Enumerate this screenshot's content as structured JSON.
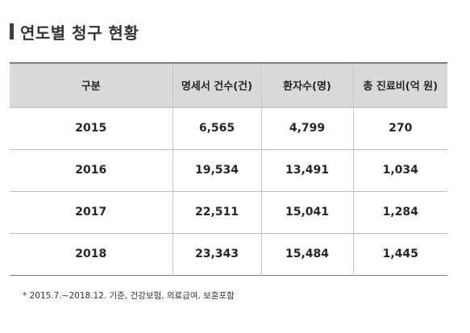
{
  "title": "연도별 청구 현황",
  "table": {
    "headers": [
      "구분",
      "명세서 건수(건)",
      "환자수(명)",
      "총 진료비(억 원)"
    ],
    "rows": [
      [
        "2015",
        "6,565",
        "4,799",
        "270"
      ],
      [
        "2016",
        "19,534",
        "13,491",
        "1,034"
      ],
      [
        "2017",
        "22,511",
        "15,041",
        "1,284"
      ],
      [
        "2018",
        "23,343",
        "15,484",
        "1,445"
      ]
    ]
  },
  "footnote": "* 2015.7.~2018.12. 기준, 건강보험, 의료급여, 보훈포함",
  "colors": {
    "header_background": "#d9d9d9",
    "title_marker": "#3f3f3f",
    "text": "#262626"
  }
}
